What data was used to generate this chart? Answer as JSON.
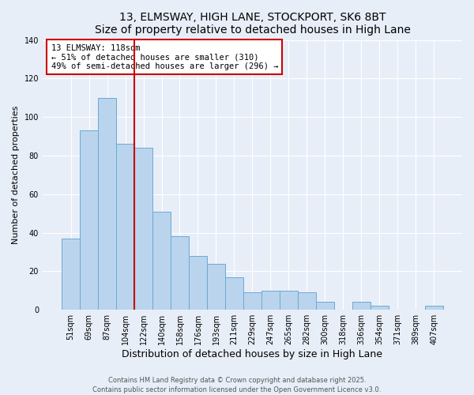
{
  "title": "13, ELMSWAY, HIGH LANE, STOCKPORT, SK6 8BT",
  "subtitle": "Size of property relative to detached houses in High Lane",
  "xlabel": "Distribution of detached houses by size in High Lane",
  "ylabel": "Number of detached properties",
  "categories": [
    "51sqm",
    "69sqm",
    "87sqm",
    "104sqm",
    "122sqm",
    "140sqm",
    "158sqm",
    "176sqm",
    "193sqm",
    "211sqm",
    "229sqm",
    "247sqm",
    "265sqm",
    "282sqm",
    "300sqm",
    "318sqm",
    "336sqm",
    "354sqm",
    "371sqm",
    "389sqm",
    "407sqm"
  ],
  "values": [
    37,
    93,
    110,
    86,
    84,
    51,
    38,
    28,
    24,
    17,
    9,
    10,
    10,
    9,
    4,
    0,
    4,
    2,
    0,
    0,
    2
  ],
  "bar_color": "#bad4ed",
  "bar_edgecolor": "#6aaad4",
  "ylim": [
    0,
    140
  ],
  "yticks": [
    0,
    20,
    40,
    60,
    80,
    100,
    120,
    140
  ],
  "vline_index": 4,
  "vline_color": "#cc0000",
  "annotation_title": "13 ELMSWAY: 118sqm",
  "annotation_line1": "← 51% of detached houses are smaller (310)",
  "annotation_line2": "49% of semi-detached houses are larger (296) →",
  "footer1": "Contains HM Land Registry data © Crown copyright and database right 2025.",
  "footer2": "Contains public sector information licensed under the Open Government Licence v3.0.",
  "background_color": "#e8eef8",
  "plot_background": "#e8eef8",
  "grid_color": "#ffffff",
  "title_fontsize": 10,
  "subtitle_fontsize": 9,
  "xlabel_fontsize": 9,
  "ylabel_fontsize": 8,
  "tick_fontsize": 7,
  "footer_fontsize": 6
}
